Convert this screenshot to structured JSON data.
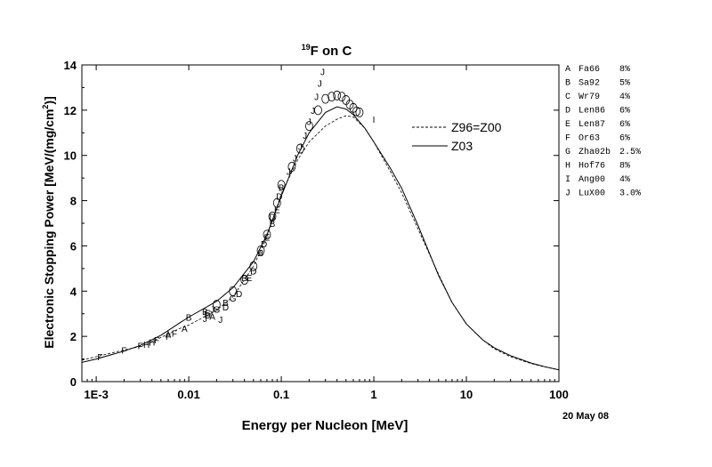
{
  "chart_data": {
    "type": "line",
    "title": "F on C",
    "title_superscript": "19",
    "xlabel": "Energy per Nucleon [MeV]",
    "ylabel": "Electronic Stopping Power [MeV/(mg/cm²)]",
    "ylabel_main": "Electronic Stopping Power [MeV/(mg/cm",
    "ylabel_sup": "2",
    "ylabel_end": ")]",
    "x_scale": "log",
    "xlim": [
      0.0007,
      100
    ],
    "ylim": [
      0,
      14
    ],
    "x_ticks": [
      {
        "value": 0.001,
        "label": "1E-3"
      },
      {
        "value": 0.01,
        "label": "0.01"
      },
      {
        "value": 0.1,
        "label": "0.1"
      },
      {
        "value": 1,
        "label": "1"
      },
      {
        "value": 10,
        "label": "10"
      },
      {
        "value": 100,
        "label": "100"
      }
    ],
    "y_ticks": [
      0,
      2,
      4,
      6,
      8,
      10,
      12,
      14
    ],
    "date": "20 May 08",
    "legend_position": "right",
    "series": [
      {
        "name": "Z96=Z00",
        "style": "dashed",
        "points": [
          [
            0.0007,
            0.95
          ],
          [
            0.001,
            1.1
          ],
          [
            0.002,
            1.4
          ],
          [
            0.003,
            1.55
          ],
          [
            0.005,
            1.95
          ],
          [
            0.008,
            2.35
          ],
          [
            0.01,
            2.5
          ],
          [
            0.02,
            3.15
          ],
          [
            0.03,
            3.75
          ],
          [
            0.05,
            5.1
          ],
          [
            0.07,
            6.4
          ],
          [
            0.1,
            8.3
          ],
          [
            0.15,
            9.8
          ],
          [
            0.2,
            10.6
          ],
          [
            0.3,
            11.3
          ],
          [
            0.4,
            11.6
          ],
          [
            0.5,
            11.75
          ],
          [
            0.6,
            11.7
          ],
          [
            0.8,
            11.2
          ],
          [
            1,
            10.6
          ],
          [
            1.5,
            9.3
          ],
          [
            2,
            8.35
          ],
          [
            3,
            6.75
          ],
          [
            5,
            4.75
          ],
          [
            7,
            3.5
          ],
          [
            10,
            2.55
          ],
          [
            15,
            1.85
          ],
          [
            20,
            1.45
          ],
          [
            30,
            1.1
          ],
          [
            50,
            0.8
          ],
          [
            70,
            0.65
          ],
          [
            100,
            0.52
          ]
        ]
      },
      {
        "name": "Z03",
        "style": "solid",
        "points": [
          [
            0.0007,
            0.85
          ],
          [
            0.001,
            1.0
          ],
          [
            0.002,
            1.35
          ],
          [
            0.003,
            1.6
          ],
          [
            0.005,
            2.05
          ],
          [
            0.008,
            2.6
          ],
          [
            0.01,
            2.85
          ],
          [
            0.02,
            3.55
          ],
          [
            0.03,
            4.15
          ],
          [
            0.05,
            5.3
          ],
          [
            0.07,
            6.5
          ],
          [
            0.1,
            8.2
          ],
          [
            0.15,
            10.0
          ],
          [
            0.2,
            11.0
          ],
          [
            0.3,
            11.9
          ],
          [
            0.4,
            12.15
          ],
          [
            0.5,
            12.05
          ],
          [
            0.6,
            11.8
          ],
          [
            0.8,
            11.2
          ],
          [
            1,
            10.6
          ],
          [
            1.5,
            9.45
          ],
          [
            2,
            8.55
          ],
          [
            3,
            6.9
          ],
          [
            5,
            4.7
          ],
          [
            7,
            3.5
          ],
          [
            10,
            2.55
          ],
          [
            15,
            1.85
          ],
          [
            20,
            1.5
          ],
          [
            30,
            1.15
          ],
          [
            50,
            0.82
          ],
          [
            70,
            0.66
          ],
          [
            100,
            0.52
          ]
        ]
      }
    ],
    "datasets": [
      {
        "code": "A",
        "ref": "Fa66",
        "error": "8%"
      },
      {
        "code": "B",
        "ref": "Sa92",
        "error": "5%"
      },
      {
        "code": "C",
        "ref": "Wr79",
        "error": "4%"
      },
      {
        "code": "D",
        "ref": "Len86",
        "error": "6%"
      },
      {
        "code": "E",
        "ref": "Len87",
        "error": "6%"
      },
      {
        "code": "F",
        "ref": "Or63",
        "error": "6%"
      },
      {
        "code": "G",
        "ref": "Zha02b",
        "error": "2.5%"
      },
      {
        "code": "H",
        "ref": "Hof76",
        "error": "8%"
      },
      {
        "code": "I",
        "ref": "Ang00",
        "error": "4%"
      },
      {
        "code": "J",
        "ref": "LuX00",
        "error": "3.0%"
      }
    ],
    "data_points": [
      {
        "s": "F",
        "x": 0.0011,
        "y": 1.1
      },
      {
        "s": "F",
        "x": 0.002,
        "y": 1.4
      },
      {
        "s": "F",
        "x": 0.003,
        "y": 1.6
      },
      {
        "s": "F",
        "x": 0.0045,
        "y": 1.85
      },
      {
        "s": "F",
        "x": 0.006,
        "y": 2.0
      },
      {
        "s": "F",
        "x": 0.007,
        "y": 2.15
      },
      {
        "s": "H",
        "x": 0.0035,
        "y": 1.65
      },
      {
        "s": "H",
        "x": 0.004,
        "y": 1.75
      },
      {
        "s": "A",
        "x": 0.006,
        "y": 2.1
      },
      {
        "s": "A",
        "x": 0.009,
        "y": 2.35
      },
      {
        "s": "A",
        "x": 0.018,
        "y": 2.9
      },
      {
        "s": "B",
        "x": 0.01,
        "y": 2.85
      },
      {
        "s": "B",
        "x": 0.015,
        "y": 3.1
      },
      {
        "s": "B",
        "x": 0.025,
        "y": 3.5
      },
      {
        "s": "B",
        "x": 0.04,
        "y": 4.6
      },
      {
        "s": "B",
        "x": 0.06,
        "y": 5.7
      },
      {
        "s": "B",
        "x": 0.08,
        "y": 7.0
      },
      {
        "s": "B",
        "x": 0.1,
        "y": 8.6
      },
      {
        "s": "J",
        "x": 0.015,
        "y": 2.8
      },
      {
        "s": "J",
        "x": 0.018,
        "y": 3.2
      },
      {
        "s": "J",
        "x": 0.022,
        "y": 2.75
      },
      {
        "s": "G",
        "x": 0.016,
        "y": 3.05
      },
      {
        "s": "G",
        "x": 0.02,
        "y": 3.2
      },
      {
        "s": "G",
        "x": 0.03,
        "y": 3.7
      },
      {
        "s": "D",
        "x": 0.016,
        "y": 2.95
      },
      {
        "s": "D",
        "x": 0.025,
        "y": 3.3
      },
      {
        "s": "D",
        "x": 0.035,
        "y": 3.9
      },
      {
        "s": "D",
        "x": 0.05,
        "y": 4.9
      },
      {
        "s": "D",
        "x": 0.065,
        "y": 6.1
      },
      {
        "s": "D",
        "x": 0.08,
        "y": 7.3
      },
      {
        "s": "D",
        "x": 0.095,
        "y": 8.2
      },
      {
        "s": "E",
        "x": 0.045,
        "y": 4.6
      },
      {
        "s": "E",
        "x": 0.07,
        "y": 6.4
      },
      {
        "s": "E",
        "x": 0.09,
        "y": 7.6
      },
      {
        "s": "C",
        "x": 0.02,
        "y": 3.4
      },
      {
        "s": "C",
        "x": 0.03,
        "y": 4.0
      },
      {
        "s": "C",
        "x": 0.04,
        "y": 4.5
      },
      {
        "s": "C",
        "x": 0.05,
        "y": 5.1
      },
      {
        "s": "C",
        "x": 0.06,
        "y": 5.8
      },
      {
        "s": "C",
        "x": 0.07,
        "y": 6.5
      },
      {
        "s": "C",
        "x": 0.08,
        "y": 7.3
      },
      {
        "s": "C",
        "x": 0.09,
        "y": 7.9
      },
      {
        "s": "C",
        "x": 0.1,
        "y": 8.7
      },
      {
        "s": "C",
        "x": 0.13,
        "y": 9.5
      },
      {
        "s": "C",
        "x": 0.16,
        "y": 10.3
      },
      {
        "s": "C",
        "x": 0.2,
        "y": 11.3
      },
      {
        "s": "C",
        "x": 0.25,
        "y": 12.0
      },
      {
        "s": "C",
        "x": 0.3,
        "y": 12.5
      },
      {
        "s": "C",
        "x": 0.35,
        "y": 12.6
      },
      {
        "s": "C",
        "x": 0.4,
        "y": 12.65
      },
      {
        "s": "C",
        "x": 0.45,
        "y": 12.6
      },
      {
        "s": "C",
        "x": 0.5,
        "y": 12.45
      },
      {
        "s": "C",
        "x": 0.55,
        "y": 12.25
      },
      {
        "s": "C",
        "x": 0.6,
        "y": 12.1
      },
      {
        "s": "C",
        "x": 0.65,
        "y": 11.95
      },
      {
        "s": "C",
        "x": 0.7,
        "y": 11.9
      },
      {
        "s": "I",
        "x": 1.0,
        "y": 11.6
      },
      {
        "s": "J",
        "x": 0.12,
        "y": 9.3
      },
      {
        "s": "J",
        "x": 0.14,
        "y": 9.9
      },
      {
        "s": "J",
        "x": 0.16,
        "y": 10.4
      },
      {
        "s": "J",
        "x": 0.18,
        "y": 10.9
      },
      {
        "s": "J",
        "x": 0.2,
        "y": 11.5
      },
      {
        "s": "J",
        "x": 0.22,
        "y": 12.0
      },
      {
        "s": "J",
        "x": 0.24,
        "y": 12.6
      },
      {
        "s": "J",
        "x": 0.26,
        "y": 13.2
      },
      {
        "s": "J",
        "x": 0.28,
        "y": 13.7
      }
    ]
  }
}
